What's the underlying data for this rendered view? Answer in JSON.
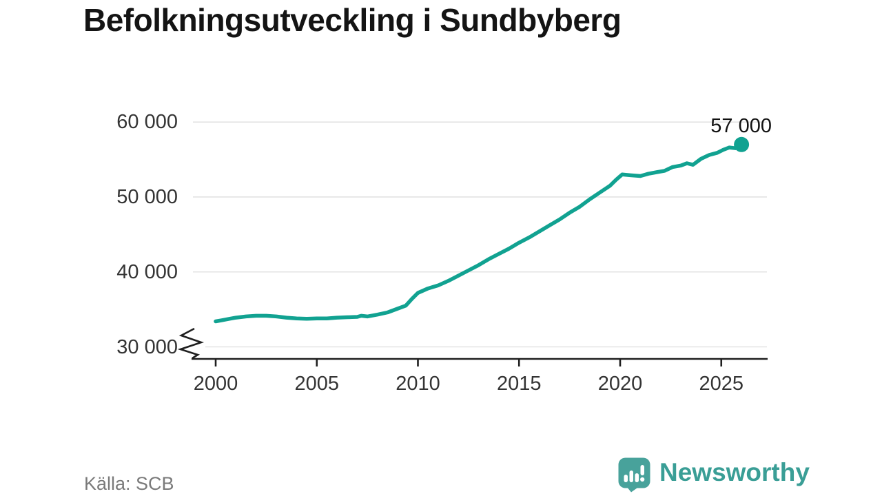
{
  "title": "Befolkningsutveckling i Sundbyberg",
  "source": "Källa: SCB",
  "brand": {
    "name": "Newsworthy",
    "color": "#3a9e96",
    "icon_color": "#48a29b"
  },
  "chart_data": {
    "type": "line",
    "title": "Befolkningsutveckling i Sundbyberg",
    "xlabel": "",
    "ylabel": "",
    "grid": "horizontal",
    "legend": "none",
    "axis_break_at_bottom": true,
    "line_color": "#11a291",
    "axis_color": "#1f1f1f",
    "grid_color": "#e3e3e3",
    "x_ticks": [
      2000,
      2005,
      2010,
      2015,
      2020,
      2025
    ],
    "y_ticks": [
      {
        "value": 30000,
        "label": "30 000"
      },
      {
        "value": 40000,
        "label": "40 000"
      },
      {
        "value": 50000,
        "label": "50 000"
      },
      {
        "value": 60000,
        "label": "60 000"
      }
    ],
    "x_range": [
      1998.8,
      2027.3
    ],
    "y_range_shown": [
      30000,
      60000
    ],
    "end_label": "57 000",
    "end_value": 57000,
    "end_year": 2026,
    "series": [
      {
        "name": "Befolkning i Sundbyberg",
        "points": [
          [
            2000.0,
            33400
          ],
          [
            2000.3,
            33550
          ],
          [
            2000.7,
            33750
          ],
          [
            2001.0,
            33900
          ],
          [
            2001.5,
            34050
          ],
          [
            2002.0,
            34150
          ],
          [
            2002.5,
            34150
          ],
          [
            2003.0,
            34050
          ],
          [
            2003.5,
            33900
          ],
          [
            2004.0,
            33800
          ],
          [
            2004.5,
            33750
          ],
          [
            2005.0,
            33800
          ],
          [
            2005.5,
            33800
          ],
          [
            2006.0,
            33900
          ],
          [
            2006.5,
            33950
          ],
          [
            2007.0,
            34000
          ],
          [
            2007.2,
            34150
          ],
          [
            2007.5,
            34050
          ],
          [
            2008.0,
            34300
          ],
          [
            2008.5,
            34600
          ],
          [
            2009.0,
            35100
          ],
          [
            2009.4,
            35500
          ],
          [
            2009.7,
            36400
          ],
          [
            2010.0,
            37200
          ],
          [
            2010.5,
            37800
          ],
          [
            2011.0,
            38200
          ],
          [
            2011.5,
            38800
          ],
          [
            2012.0,
            39500
          ],
          [
            2012.5,
            40200
          ],
          [
            2013.0,
            40900
          ],
          [
            2013.5,
            41700
          ],
          [
            2014.0,
            42400
          ],
          [
            2014.5,
            43100
          ],
          [
            2015.0,
            43900
          ],
          [
            2015.5,
            44600
          ],
          [
            2016.0,
            45400
          ],
          [
            2016.5,
            46200
          ],
          [
            2017.0,
            47000
          ],
          [
            2017.5,
            47900
          ],
          [
            2018.0,
            48700
          ],
          [
            2018.5,
            49700
          ],
          [
            2019.0,
            50600
          ],
          [
            2019.5,
            51500
          ],
          [
            2019.8,
            52300
          ],
          [
            2020.1,
            53000
          ],
          [
            2020.5,
            52900
          ],
          [
            2021.0,
            52800
          ],
          [
            2021.4,
            53100
          ],
          [
            2021.8,
            53300
          ],
          [
            2022.2,
            53500
          ],
          [
            2022.6,
            54000
          ],
          [
            2023.0,
            54200
          ],
          [
            2023.3,
            54500
          ],
          [
            2023.6,
            54300
          ],
          [
            2024.0,
            55100
          ],
          [
            2024.4,
            55600
          ],
          [
            2024.8,
            55900
          ],
          [
            2025.1,
            56300
          ],
          [
            2025.4,
            56600
          ],
          [
            2025.7,
            56500
          ],
          [
            2026.0,
            57000
          ]
        ]
      }
    ]
  }
}
